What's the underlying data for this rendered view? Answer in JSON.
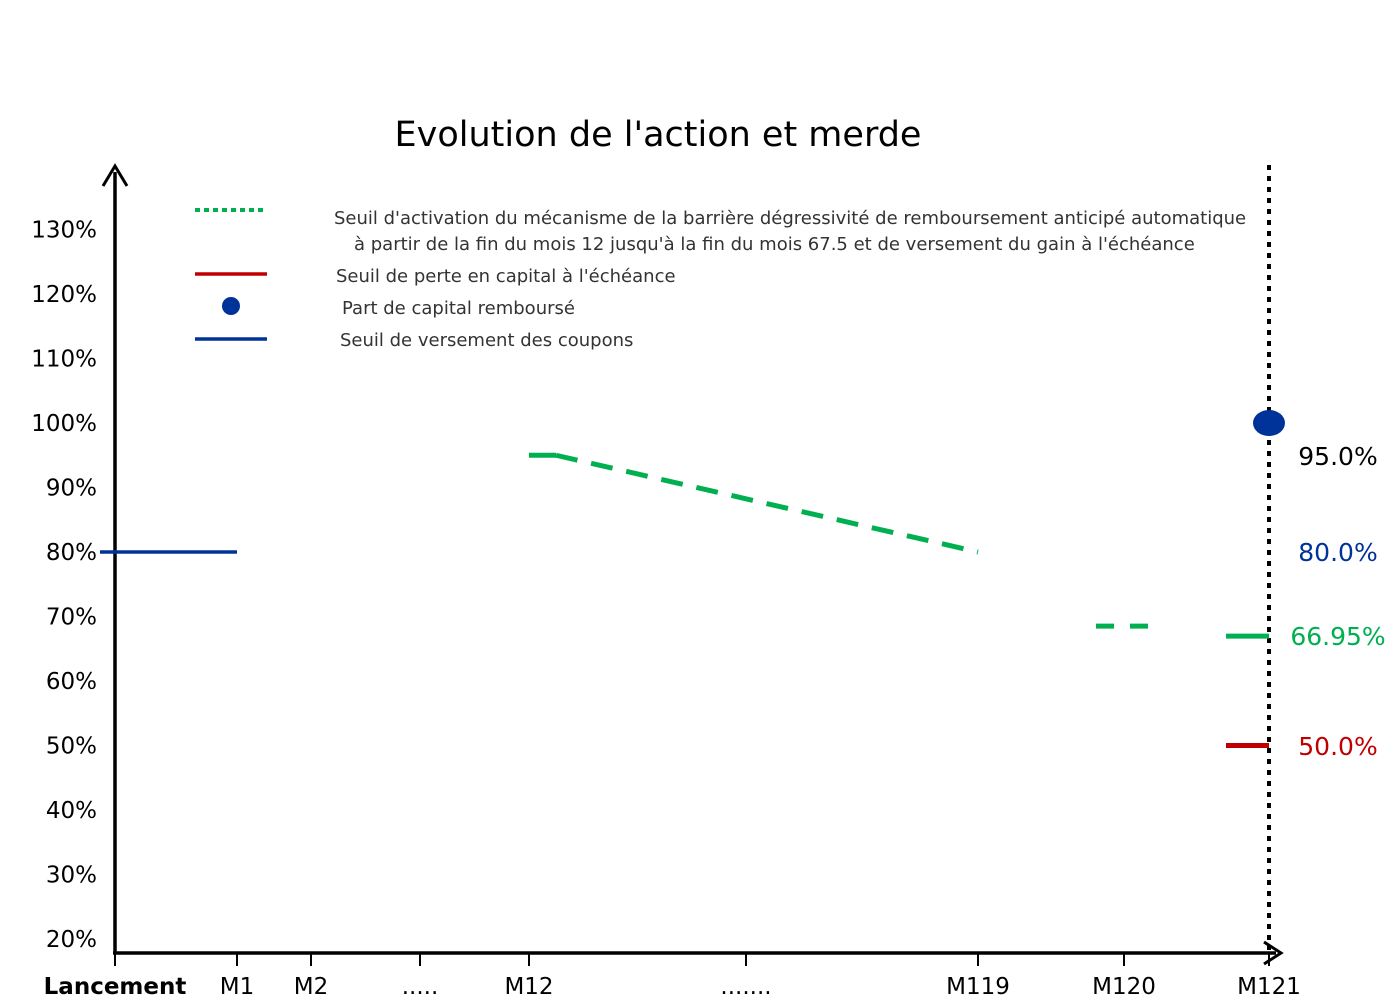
{
  "colors": {
    "axis": "#000000",
    "green": "#00b050",
    "red": "#c00000",
    "blue": "#003399",
    "text": "#000000"
  },
  "chart_data": {
    "type": "line",
    "title": "Evolution de l'action et merde",
    "y_ticks": [
      "130%",
      "120%",
      "110%",
      "100%",
      "90%",
      "80%",
      "70%",
      "60%",
      "50%",
      "40%",
      "30%",
      "20%"
    ],
    "x_ticks": [
      "Lancement",
      "M1",
      "M2",
      ".....",
      "M12",
      ".......",
      "M119",
      "M120",
      "M121"
    ],
    "legend": [
      {
        "style": "dotted-line",
        "color": "green",
        "lines": [
          "Seuil d'activation du mécanisme de la barrière dégressivité de remboursement anticipé automatique",
          " à partir de la fin du mois 12 jusqu'à la fin du mois 67.5 et de versement du gain à l'échéance"
        ]
      },
      {
        "style": "solid-line",
        "color": "red",
        "lines": [
          "Seuil de perte en capital à l'échéance"
        ]
      },
      {
        "style": "dot",
        "color": "blue",
        "lines": [
          "Part de capital remboursé"
        ]
      },
      {
        "style": "solid-line",
        "color": "blue",
        "lines": [
          "Seuil de versement des coupons"
        ]
      }
    ],
    "series": [
      {
        "name": "Seuil de versement des coupons",
        "color": "blue",
        "style": "solid",
        "points": [
          [
            "Lancement",
            80
          ],
          [
            "M1",
            80
          ]
        ]
      },
      {
        "name": "Seuil d'activation (dégressif)",
        "color": "green",
        "style": "dashed",
        "segments": [
          [
            [
              "M12",
              95
            ],
            [
              "M12+",
              95
            ]
          ],
          [
            [
              "M12+",
              95
            ],
            [
              "M119",
              80
            ]
          ],
          [
            [
              "M120-",
              68.5
            ],
            [
              "M120+",
              68.5
            ]
          ],
          [
            [
              "M121-",
              66.95
            ],
            [
              "M121",
              66.95
            ]
          ]
        ]
      },
      {
        "name": "Seuil de perte en capital à l'échéance",
        "color": "red",
        "style": "solid",
        "points": [
          [
            "M121-",
            50
          ],
          [
            "M121",
            50
          ]
        ]
      },
      {
        "name": "Part de capital remboursé",
        "color": "blue",
        "style": "dot",
        "points": [
          [
            "M121",
            100
          ]
        ]
      }
    ],
    "end_labels": [
      {
        "text": "95.0%",
        "color": "text"
      },
      {
        "text": "80.0%",
        "color": "blue"
      },
      {
        "text": "66.95%",
        "color": "green"
      },
      {
        "text": "50.0%",
        "color": "red"
      }
    ],
    "maturity_line": "dotted vertical at M121",
    "ylim": [
      18,
      140
    ]
  }
}
